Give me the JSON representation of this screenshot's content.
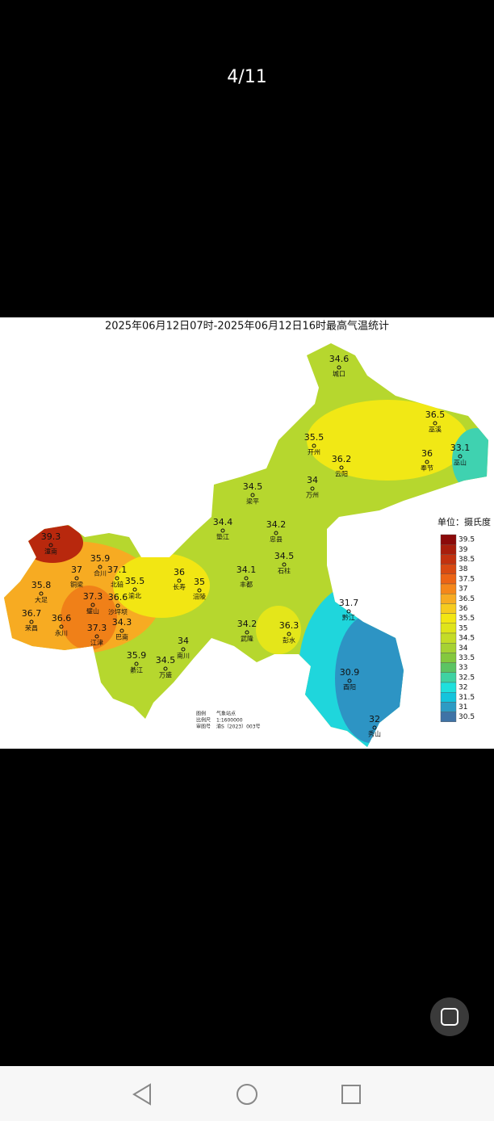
{
  "header": {
    "counter": "4/11"
  },
  "map": {
    "title": "2025年06月12日07时-2025年06月12日16时最高气温统计",
    "stations": [
      {
        "name": "城口",
        "value": 34.6
      },
      {
        "name": "巫溪",
        "value": 36.5
      },
      {
        "name": "开州",
        "value": 35.5
      },
      {
        "name": "云阳",
        "value": 36.2
      },
      {
        "name": "奉节",
        "value": 36
      },
      {
        "name": "巫山",
        "value": 33.1
      },
      {
        "name": "万州",
        "value": 34
      },
      {
        "name": "梁平",
        "value": 34.5
      },
      {
        "name": "潼南",
        "value": 39.3
      },
      {
        "name": "垫江",
        "value": 34.4
      },
      {
        "name": "忠县",
        "value": 34.2
      },
      {
        "name": "石柱",
        "value": 34.5
      },
      {
        "name": "铜梁",
        "value": 37
      },
      {
        "name": "合川",
        "value": 35.9
      },
      {
        "name": "北碚",
        "value": 37.1
      },
      {
        "name": "渝北",
        "value": 35.5
      },
      {
        "name": "长寿",
        "value": 36
      },
      {
        "name": "涪陵",
        "value": 35
      },
      {
        "name": "丰都",
        "value": 34.1
      },
      {
        "name": "大足",
        "value": 35.8
      },
      {
        "name": "璧山",
        "value": 37.3
      },
      {
        "name": "沙坪坝",
        "value": 36.6
      },
      {
        "name": "荣昌",
        "value": 36.7
      },
      {
        "name": "永川",
        "value": 36.6
      },
      {
        "name": "巴南",
        "value": 34.3
      },
      {
        "name": "江津",
        "value": 37.3
      },
      {
        "name": "黔江",
        "value": 31.7
      },
      {
        "name": "武隆",
        "value": 34.2
      },
      {
        "name": "彭水",
        "value": 36.3
      },
      {
        "name": "南川",
        "value": 34
      },
      {
        "name": "綦江",
        "value": 35.9
      },
      {
        "name": "万盛",
        "value": 34.5
      },
      {
        "name": "酉阳",
        "value": 30.9
      },
      {
        "name": "秀山",
        "value": 32
      }
    ],
    "notes": {
      "legend_label": "图例",
      "legend_item": "气象站点",
      "scale_label": "比例尺",
      "scale": "1:1600000",
      "approval_label": "审图号",
      "approval": "渝S（2023）003号"
    }
  },
  "legend": {
    "unit": "单位：摄氏度",
    "levels": [
      39.5,
      39,
      38.5,
      38,
      37.5,
      37,
      36.5,
      36,
      35.5,
      35,
      34.5,
      34,
      33.5,
      33,
      32.5,
      32,
      31.5,
      31,
      30.5
    ],
    "colors": [
      "#8b0a0a",
      "#a81e0c",
      "#c2320f",
      "#d84a12",
      "#ec6415",
      "#f5871a",
      "#f7ab22",
      "#f6cb1f",
      "#f2e613",
      "#dfe41a",
      "#c4dc27",
      "#a6d233",
      "#84c83e",
      "#5cc463",
      "#3fd2a2",
      "#1fe0dc",
      "#14c4dc",
      "#2d9bc4",
      "#3f73a6"
    ]
  }
}
